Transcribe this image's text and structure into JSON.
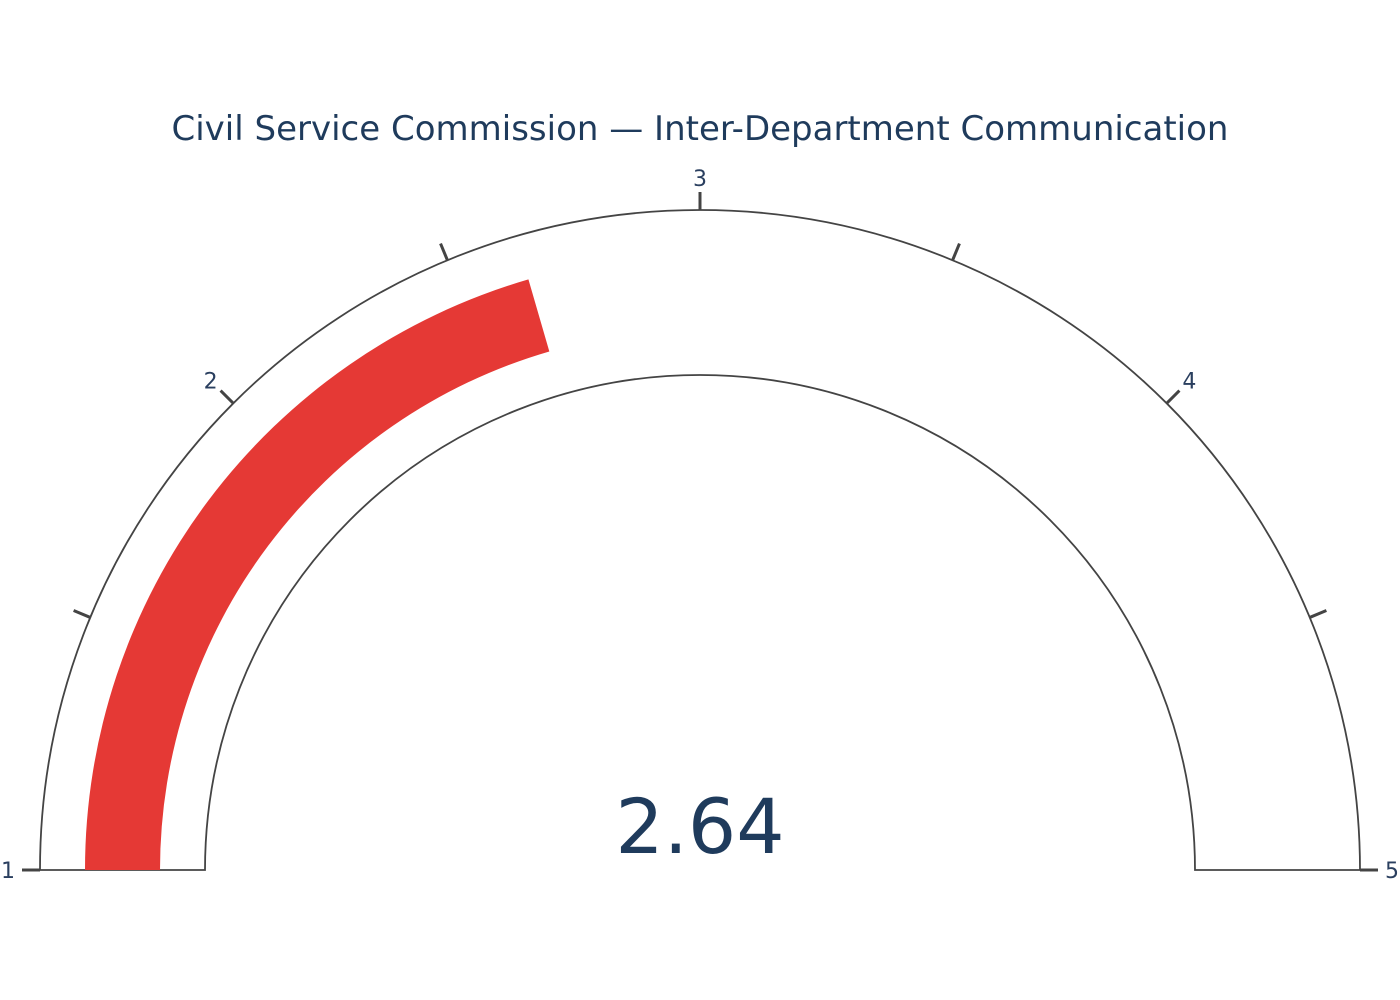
{
  "chart_data": {
    "type": "gauge",
    "title": "Civil Service Commission — Inter-Department Communication",
    "value": 2.64,
    "value_label": "2.64",
    "range": [
      1,
      5
    ],
    "major_ticks": [
      1,
      2,
      3,
      4,
      5
    ],
    "minor_ticks": [
      1.5,
      2.5,
      3.5,
      4.5
    ],
    "tick_labels": [
      "1",
      "2",
      "3",
      "4",
      "5"
    ],
    "bar_color": "#e53935",
    "outline_color": "#444444",
    "text_color": "#1f3b5c"
  }
}
